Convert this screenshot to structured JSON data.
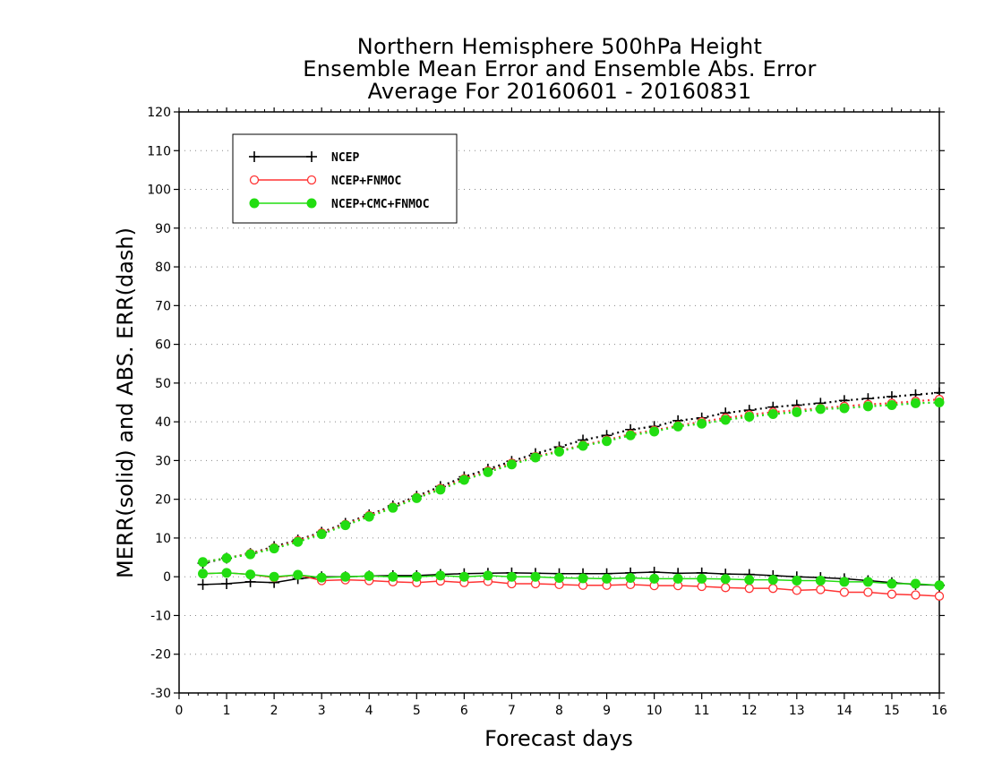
{
  "chart_data": {
    "type": "line",
    "title": [
      "Northern Hemisphere 500hPa Height",
      "Ensemble Mean Error and Ensemble Abs. Error",
      "Average For 20160601 - 20160831"
    ],
    "xlabel": "Forecast days",
    "ylabel": "MERR(solid) and ABS. ERR(dash)",
    "xlim": [
      0,
      16
    ],
    "ylim": [
      -30,
      120
    ],
    "xticks": [
      0,
      1,
      2,
      3,
      4,
      5,
      6,
      7,
      8,
      9,
      10,
      11,
      12,
      13,
      14,
      15,
      16
    ],
    "yticks": [
      -30,
      -20,
      -10,
      0,
      10,
      20,
      30,
      40,
      50,
      60,
      70,
      80,
      90,
      100,
      110,
      120
    ],
    "grid": "horizontal-dotted",
    "legend_position": "top-left",
    "x": [
      0.5,
      1,
      1.5,
      2,
      2.5,
      3,
      3.5,
      4,
      4.5,
      5,
      5.5,
      6,
      6.5,
      7,
      7.5,
      8,
      8.5,
      9,
      9.5,
      10,
      10.5,
      11,
      11.5,
      12,
      12.5,
      13,
      13.5,
      14,
      14.5,
      15,
      15.5,
      16
    ],
    "series": [
      {
        "name": "NCEP",
        "color": "#000000",
        "marker": "plus",
        "merr": [
          -2,
          -1.8,
          -1.3,
          -1.5,
          -0.5,
          0,
          0,
          0.2,
          0.3,
          0.3,
          0.6,
          0.8,
          0.9,
          1.0,
          0.9,
          0.8,
          0.8,
          0.8,
          1.0,
          1.2,
          0.9,
          1.0,
          0.7,
          0.6,
          0.3,
          0,
          -0.2,
          -0.5,
          -1.0,
          -1.5,
          -2.0,
          -2.2
        ],
        "abs_err": [
          3.5,
          4.8,
          6.0,
          7.8,
          9.5,
          11.5,
          13.8,
          16.0,
          18.3,
          20.8,
          23.3,
          25.8,
          27.8,
          29.8,
          31.8,
          33.5,
          35.3,
          36.5,
          38.0,
          38.8,
          40.3,
          41.0,
          42.3,
          43.0,
          43.8,
          44.3,
          44.8,
          45.5,
          46.0,
          46.5,
          47.0,
          47.5
        ]
      },
      {
        "name": "NCEP+FNMOC",
        "color": "#ff3333",
        "marker": "open-circle",
        "merr": [
          0.8,
          1.0,
          0.6,
          -0.2,
          0.5,
          -1.0,
          -0.8,
          -1.0,
          -1.3,
          -1.5,
          -1.1,
          -1.5,
          -1.2,
          -1.8,
          -1.8,
          -2.0,
          -2.2,
          -2.2,
          -2.0,
          -2.3,
          -2.3,
          -2.5,
          -2.8,
          -3.0,
          -3.0,
          -3.5,
          -3.3,
          -4.0,
          -4.0,
          -4.5,
          -4.7,
          -5.0
        ],
        "abs_err": [
          3.8,
          4.8,
          6.0,
          7.5,
          9.3,
          11.3,
          13.5,
          15.8,
          18.0,
          20.5,
          22.8,
          25.3,
          27.3,
          29.3,
          31.0,
          32.5,
          34.0,
          35.3,
          36.8,
          37.8,
          39.0,
          40.0,
          41.0,
          41.8,
          42.5,
          43.0,
          43.5,
          44.0,
          44.5,
          44.8,
          45.3,
          45.8
        ]
      },
      {
        "name": "NCEP+CMC+FNMOC",
        "color": "#22dd11",
        "marker": "filled-circle",
        "merr": [
          0.8,
          1.0,
          0.6,
          0,
          0.5,
          -0.2,
          0,
          0.2,
          0,
          0,
          0.3,
          0,
          0.3,
          0,
          0,
          -0.3,
          -0.4,
          -0.5,
          -0.3,
          -0.5,
          -0.5,
          -0.5,
          -0.6,
          -0.8,
          -0.8,
          -1.0,
          -1.0,
          -1.3,
          -1.3,
          -1.8,
          -1.8,
          -2.2
        ],
        "abs_err": [
          3.8,
          4.8,
          5.8,
          7.3,
          9.0,
          11.0,
          13.3,
          15.5,
          17.8,
          20.3,
          22.5,
          25.0,
          27.0,
          29.0,
          30.8,
          32.3,
          33.8,
          35.0,
          36.5,
          37.5,
          38.8,
          39.5,
          40.5,
          41.3,
          42.0,
          42.5,
          43.3,
          43.5,
          44.0,
          44.3,
          44.8,
          45.0
        ]
      }
    ]
  }
}
